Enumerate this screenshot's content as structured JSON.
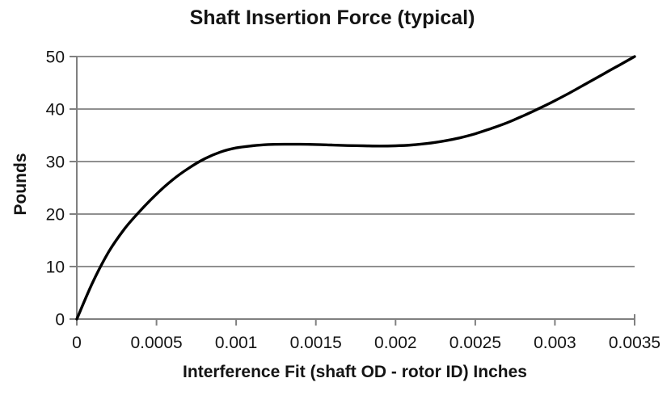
{
  "chart_data": {
    "type": "line",
    "title": "Shaft Insertion Force (typical)",
    "xlabel": "Interference Fit (shaft OD - rotor ID) Inches",
    "ylabel": "Pounds",
    "xlim": [
      0,
      0.0035
    ],
    "ylim": [
      0,
      50
    ],
    "x_ticks": [
      0,
      0.0005,
      0.001,
      0.0015,
      0.002,
      0.0025,
      0.003,
      0.0035
    ],
    "x_tick_labels": [
      "0",
      "0.0005",
      "0.001",
      "0.0015",
      "0.002",
      "0.0025",
      "0.003",
      "0.0035"
    ],
    "y_ticks": [
      0,
      10,
      20,
      30,
      40,
      50
    ],
    "y_tick_labels": [
      "0",
      "10",
      "20",
      "30",
      "40",
      "50"
    ],
    "grid": "horizontal-only",
    "legend_position": "none",
    "colors": {
      "line": "#000000",
      "grid": "#909090",
      "axis": "#808080",
      "text": "#141414",
      "background": "#ffffff"
    },
    "series": [
      {
        "name": "Shaft Insertion Force",
        "x": [
          0.0,
          0.0001,
          0.0002,
          0.0003,
          0.0004,
          0.0005,
          0.0006,
          0.0007,
          0.0008,
          0.0009,
          0.001,
          0.0011,
          0.0012,
          0.0013,
          0.0014,
          0.0015,
          0.0016,
          0.0017,
          0.0018,
          0.0019,
          0.002,
          0.0021,
          0.0022,
          0.0023,
          0.0024,
          0.0025,
          0.0026,
          0.0027,
          0.0028,
          0.0029,
          0.003,
          0.0031,
          0.0032,
          0.0033,
          0.0034,
          0.0035
        ],
        "y": [
          0,
          7,
          12.8,
          17.2,
          20.7,
          23.8,
          26.5,
          28.7,
          30.5,
          31.8,
          32.6,
          33.0,
          33.25,
          33.3,
          33.3,
          33.25,
          33.15,
          33.05,
          33.0,
          32.95,
          33.0,
          33.15,
          33.45,
          33.9,
          34.5,
          35.3,
          36.3,
          37.4,
          38.7,
          40.1,
          41.6,
          43.2,
          44.9,
          46.6,
          48.3,
          50.0
        ]
      }
    ]
  }
}
